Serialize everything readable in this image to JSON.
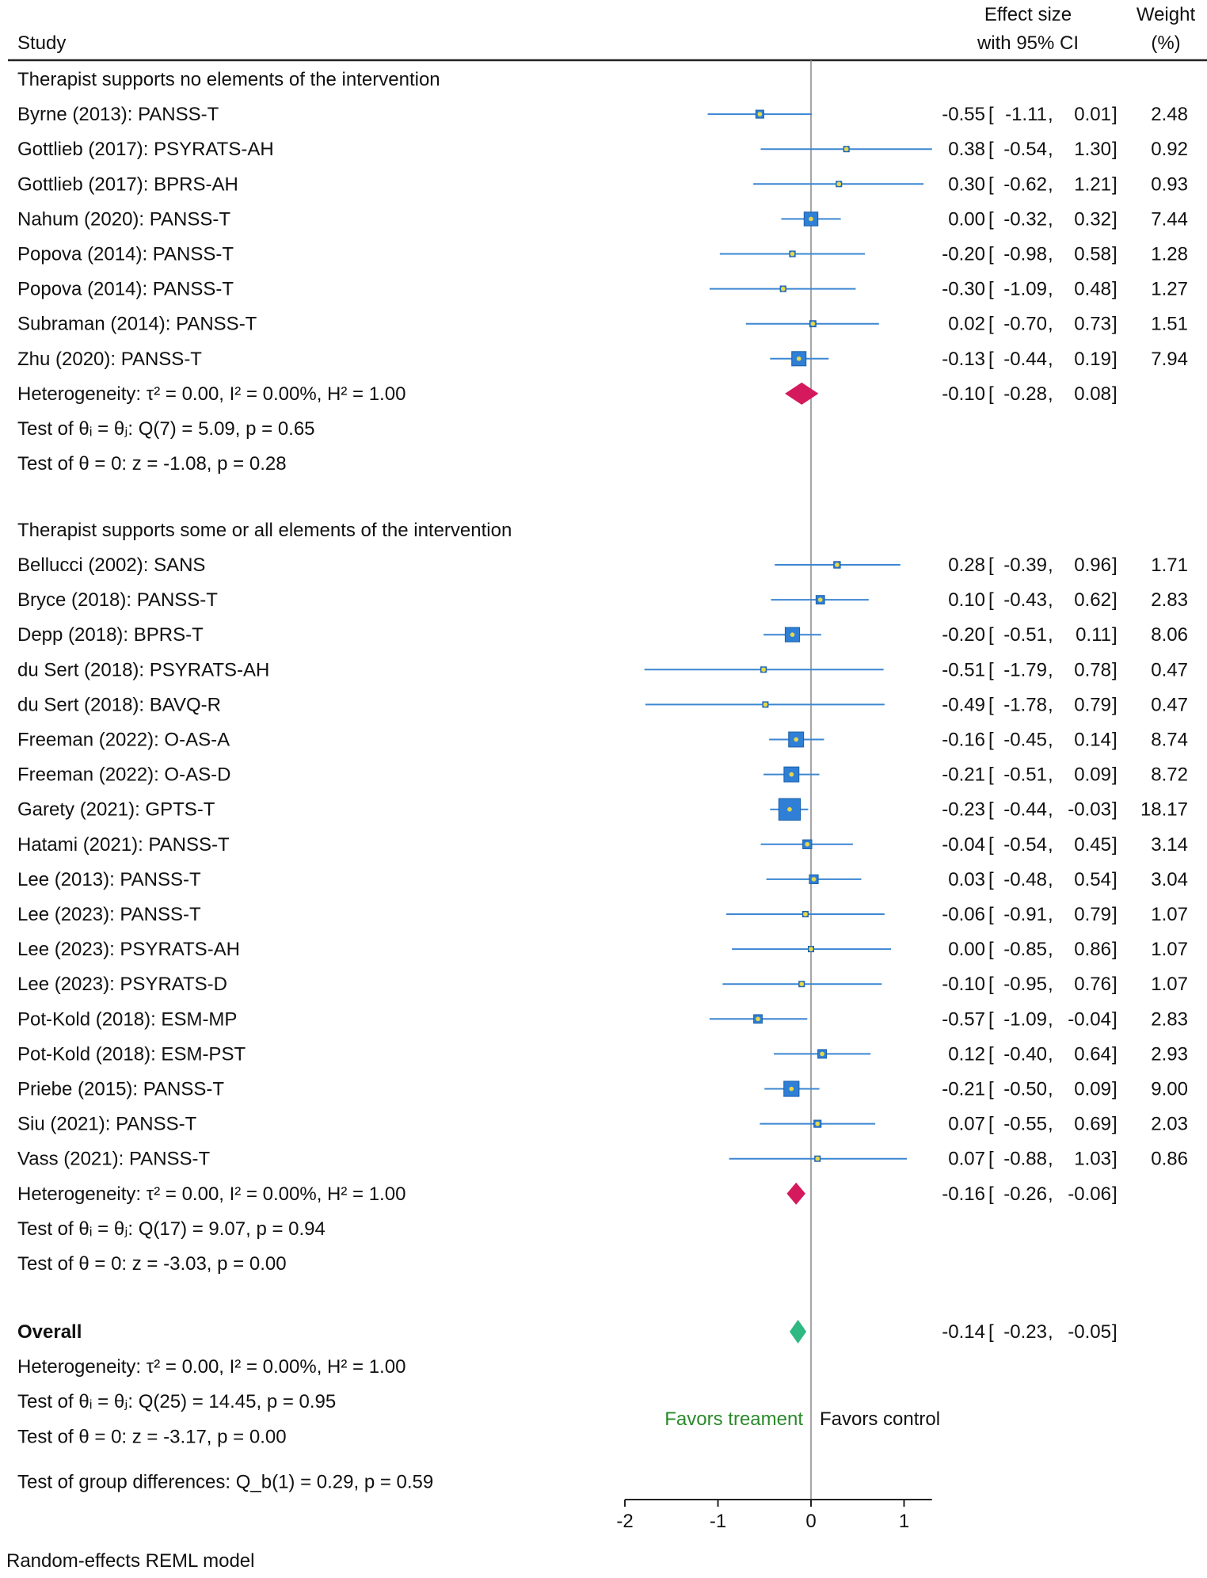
{
  "header": {
    "study": "Study",
    "effect_line1": "Effect size",
    "effect_line2": "with 95% CI",
    "weight_line1": "Weight",
    "weight_line2": "(%)"
  },
  "chart_data": {
    "type": "forest",
    "xlim": [
      -2,
      1.3
    ],
    "xticks": [
      "-2",
      "-1",
      "0",
      "1"
    ],
    "xtick_values": [
      -2,
      -1,
      0,
      1
    ],
    "favors_left": "Favors treament",
    "favors_right": "Favors control",
    "footer": "Random-effects REML model",
    "colors": {
      "square": "#2f7fd6",
      "line": "#3b86d2",
      "dot": "#e6d84a",
      "group_diamond": "#d41a5c",
      "overall_diamond": "#2fb882",
      "favors_left": "#2a8a2a"
    },
    "groups": [
      {
        "title": "Therapist supports no elements of the intervention",
        "studies": [
          {
            "label": "Byrne (2013): PANSS-T",
            "es": "-0.55",
            "lo": "-1.11",
            "hi": "0.01",
            "weight": "2.48"
          },
          {
            "label": "Gottlieb (2017): PSYRATS-AH",
            "es": "0.38",
            "lo": "-0.54",
            "hi": "1.30",
            "weight": "0.92"
          },
          {
            "label": "Gottlieb (2017): BPRS-AH",
            "es": "0.30",
            "lo": "-0.62",
            "hi": "1.21",
            "weight": "0.93"
          },
          {
            "label": "Nahum (2020): PANSS-T",
            "es": "0.00",
            "lo": "-0.32",
            "hi": "0.32",
            "weight": "7.44"
          },
          {
            "label": "Popova (2014): PANSS-T",
            "es": "-0.20",
            "lo": "-0.98",
            "hi": "0.58",
            "weight": "1.28"
          },
          {
            "label": "Popova (2014): PANSS-T",
            "es": "-0.30",
            "lo": "-1.09",
            "hi": "0.48",
            "weight": "1.27"
          },
          {
            "label": "Subraman (2014): PANSS-T",
            "es": "0.02",
            "lo": "-0.70",
            "hi": "0.73",
            "weight": "1.51"
          },
          {
            "label": "Zhu (2020): PANSS-T",
            "es": "-0.13",
            "lo": "-0.44",
            "hi": "0.19",
            "weight": "7.94"
          }
        ],
        "summary": {
          "es": "-0.10",
          "lo": "-0.28",
          "hi": "0.08"
        },
        "heterogeneity": "Heterogeneity: τ² = 0.00, I² = 0.00%, H² = 1.00",
        "q_test": "Test of θᵢ = θⱼ: Q(7) = 5.09, p = 0.65",
        "z_test": "Test of θ = 0: z = -1.08, p = 0.28"
      },
      {
        "title": "Therapist supports some or all elements of the intervention",
        "studies": [
          {
            "label": "Bellucci (2002): SANS",
            "es": "0.28",
            "lo": "-0.39",
            "hi": "0.96",
            "weight": "1.71"
          },
          {
            "label": "Bryce (2018): PANSS-T",
            "es": "0.10",
            "lo": "-0.43",
            "hi": "0.62",
            "weight": "2.83"
          },
          {
            "label": "Depp (2018): BPRS-T",
            "es": "-0.20",
            "lo": "-0.51",
            "hi": "0.11",
            "weight": "8.06"
          },
          {
            "label": "du Sert (2018): PSYRATS-AH",
            "es": "-0.51",
            "lo": "-1.79",
            "hi": "0.78",
            "weight": "0.47"
          },
          {
            "label": "du Sert (2018): BAVQ-R",
            "es": "-0.49",
            "lo": "-1.78",
            "hi": "0.79",
            "weight": "0.47"
          },
          {
            "label": "Freeman (2022): O-AS-A",
            "es": "-0.16",
            "lo": "-0.45",
            "hi": "0.14",
            "weight": "8.74"
          },
          {
            "label": "Freeman (2022): O-AS-D",
            "es": "-0.21",
            "lo": "-0.51",
            "hi": "0.09",
            "weight": "8.72"
          },
          {
            "label": "Garety (2021): GPTS-T",
            "es": "-0.23",
            "lo": "-0.44",
            "hi": "-0.03",
            "weight": "18.17"
          },
          {
            "label": "Hatami (2021): PANSS-T",
            "es": "-0.04",
            "lo": "-0.54",
            "hi": "0.45",
            "weight": "3.14"
          },
          {
            "label": "Lee (2013): PANSS-T",
            "es": "0.03",
            "lo": "-0.48",
            "hi": "0.54",
            "weight": "3.04"
          },
          {
            "label": "Lee (2023): PANSS-T",
            "es": "-0.06",
            "lo": "-0.91",
            "hi": "0.79",
            "weight": "1.07"
          },
          {
            "label": "Lee (2023): PSYRATS-AH",
            "es": "0.00",
            "lo": "-0.85",
            "hi": "0.86",
            "weight": "1.07"
          },
          {
            "label": "Lee (2023): PSYRATS-D",
            "es": "-0.10",
            "lo": "-0.95",
            "hi": "0.76",
            "weight": "1.07"
          },
          {
            "label": "Pot-Kold (2018): ESM-MP",
            "es": "-0.57",
            "lo": "-1.09",
            "hi": "-0.04",
            "weight": "2.83"
          },
          {
            "label": "Pot-Kold (2018): ESM-PST",
            "es": "0.12",
            "lo": "-0.40",
            "hi": "0.64",
            "weight": "2.93"
          },
          {
            "label": "Priebe (2015): PANSS-T",
            "es": "-0.21",
            "lo": "-0.50",
            "hi": "0.09",
            "weight": "9.00"
          },
          {
            "label": "Siu (2021): PANSS-T",
            "es": "0.07",
            "lo": "-0.55",
            "hi": "0.69",
            "weight": "2.03"
          },
          {
            "label": "Vass (2021): PANSS-T",
            "es": "0.07",
            "lo": "-0.88",
            "hi": "1.03",
            "weight": "0.86"
          }
        ],
        "summary": {
          "es": "-0.16",
          "lo": "-0.26",
          "hi": "-0.06"
        },
        "heterogeneity": "Heterogeneity: τ² = 0.00, I² = 0.00%, H² = 1.00",
        "q_test": "Test of θᵢ = θⱼ: Q(17) = 9.07, p = 0.94",
        "z_test": "Test of θ = 0: z = -3.03, p = 0.00"
      }
    ],
    "overall": {
      "label": "Overall",
      "es": "-0.14",
      "lo": "-0.23",
      "hi": "-0.05",
      "heterogeneity": "Heterogeneity: τ² = 0.00, I² = 0.00%, H² = 1.00",
      "q_test": "Test of θᵢ = θⱼ: Q(25) = 14.45, p = 0.95",
      "z_test": "Test of θ = 0: z = -3.17, p = 0.00",
      "group_diff": "Test of group differences: Q_b(1) = 0.29, p = 0.59"
    }
  }
}
